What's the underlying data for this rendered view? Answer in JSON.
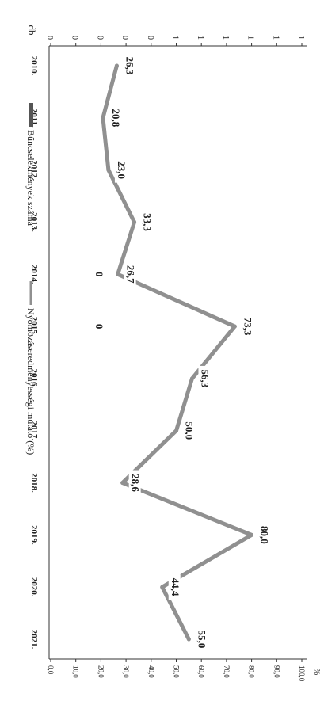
{
  "chart_data": {
    "type": "line",
    "orientation": "rotated-90-clockwise",
    "categories": [
      "2010.",
      "2011.",
      "2012.",
      "2013.",
      "2014.",
      "2015.",
      "2016.",
      "2017.",
      "2018.",
      "2019.",
      "2020.",
      "2021."
    ],
    "series": [
      {
        "name": "Bűncselekmények száma",
        "axis": "left",
        "values": [
          0,
          0,
          0,
          0,
          0,
          0,
          0,
          0,
          0,
          0,
          0,
          0
        ],
        "data_labels": [
          "",
          "",
          "",
          "",
          "0",
          "0",
          "",
          "",
          "",
          "",
          "",
          ""
        ]
      },
      {
        "name": "Nyomozáseredményességi mutató (%)",
        "axis": "right",
        "values": [
          26.3,
          20.8,
          23.0,
          33.3,
          26.7,
          73.3,
          56.3,
          50.0,
          28.6,
          80.0,
          44.4,
          55.0
        ],
        "data_labels": [
          "26,3",
          "20,8",
          "23,0",
          "33,3",
          "26,7",
          "73,3",
          "56,3",
          "50,0",
          "28,6",
          "80,0",
          "44,4",
          "55,0"
        ]
      }
    ],
    "left_axis": {
      "label": "db",
      "tick_labels": [
        "0",
        "0",
        "0",
        "0",
        "0",
        "1",
        "1",
        "1",
        "1",
        "1",
        "1"
      ]
    },
    "right_axis": {
      "label": "%",
      "ylim": [
        0,
        100
      ],
      "tick_labels": [
        "0,0",
        "10,0",
        "20,0",
        "30,0",
        "40,0",
        "50,0",
        "60,0",
        "70,0",
        "80,0",
        "90,0",
        "100,0"
      ]
    },
    "legend_position": "top",
    "colors": {
      "count_series": "#555555",
      "rate_series": "#909090",
      "text": "#222222"
    },
    "grid": false
  }
}
